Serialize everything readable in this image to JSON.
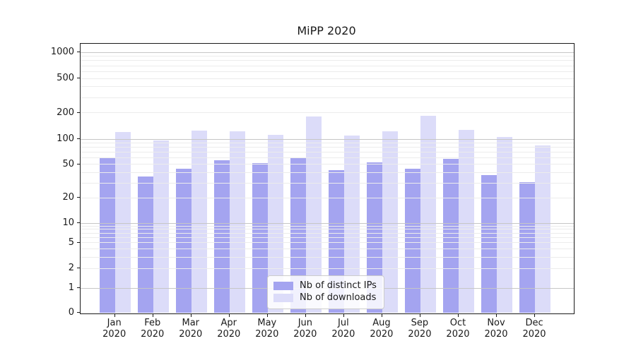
{
  "title": "MiPP 2020",
  "chart_data": {
    "type": "bar",
    "title": "MiPP 2020",
    "yscale": "symlog",
    "xlabel": "",
    "ylabel": "",
    "y_tick_labels": [
      0,
      1,
      2,
      5,
      10,
      20,
      50,
      100,
      200,
      500,
      1000
    ],
    "ylim": [
      0,
      1200
    ],
    "grid": "both",
    "legend_position": "lower center",
    "categories": [
      {
        "month": "Jan",
        "year": "2020"
      },
      {
        "month": "Feb",
        "year": "2020"
      },
      {
        "month": "Mar",
        "year": "2020"
      },
      {
        "month": "Apr",
        "year": "2020"
      },
      {
        "month": "May",
        "year": "2020"
      },
      {
        "month": "Jun",
        "year": "2020"
      },
      {
        "month": "Jul",
        "year": "2020"
      },
      {
        "month": "Aug",
        "year": "2020"
      },
      {
        "month": "Sep",
        "year": "2020"
      },
      {
        "month": "Oct",
        "year": "2020"
      },
      {
        "month": "Nov",
        "year": "2020"
      },
      {
        "month": "Dec",
        "year": "2020"
      }
    ],
    "series": [
      {
        "name": "Nb of distinct IPs",
        "color": "#a4a4f0",
        "values": [
          60,
          36,
          44,
          56,
          52,
          60,
          43,
          53,
          44,
          58,
          37,
          31
        ]
      },
      {
        "name": "Nb of downloads",
        "color": "#dcdcf9",
        "values": [
          120,
          96,
          125,
          122,
          112,
          181,
          110,
          124,
          184,
          127,
          106,
          84
        ]
      }
    ],
    "colors": {
      "grid_major": "#c6c6c6",
      "grid_minor": "#ececec",
      "axis": "#1a1a1a",
      "text": "#1a1a1a",
      "legend_border": "#cccccc",
      "background": "#ffffff"
    }
  }
}
